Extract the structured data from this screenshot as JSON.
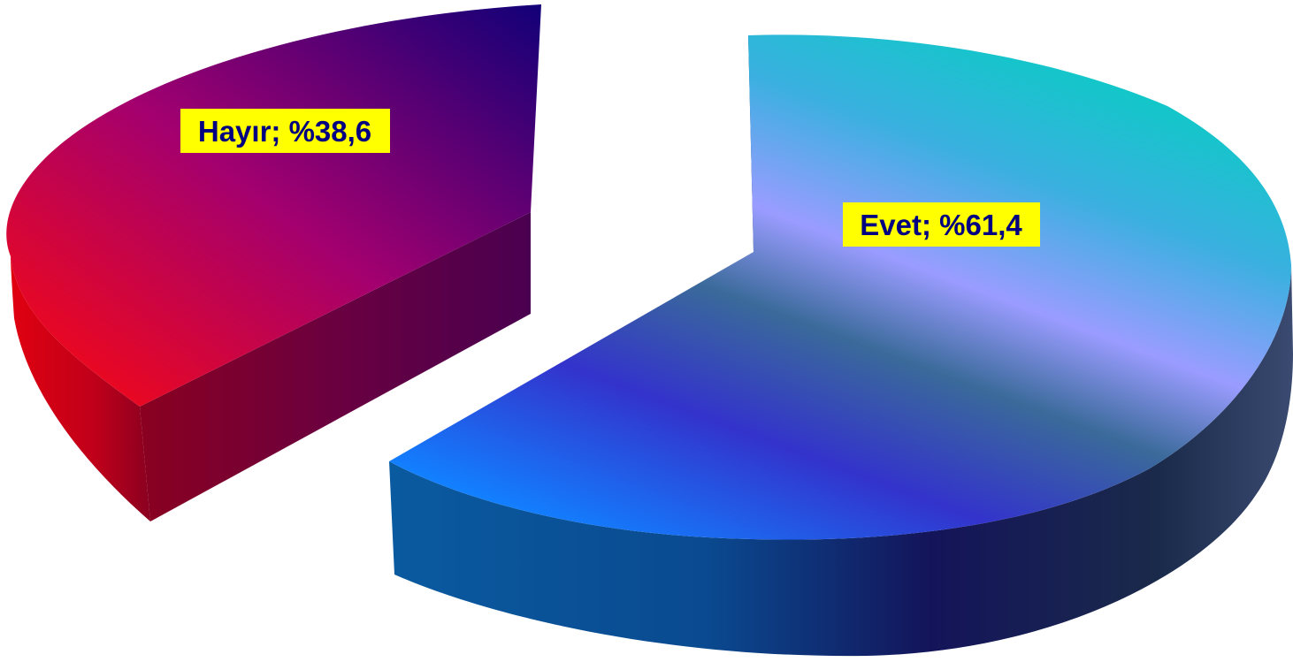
{
  "chart_data": {
    "type": "pie",
    "style": "3d-exploded",
    "slices": [
      {
        "label": "Hayır",
        "value": 38.6,
        "data_label": "Hayır; %38,6",
        "gradient": [
          "#ff0000",
          "#a8006a",
          "#140080"
        ],
        "side_color": "#8a0030"
      },
      {
        "label": "Evet",
        "value": 61.4,
        "data_label": "Evet; %61,4",
        "gradient": [
          "#1a8cff",
          "#3333cc",
          "#99a0ff",
          "#10c8c8"
        ],
        "side_color": "#0c4a8a"
      }
    ],
    "label_background": "#ffff00",
    "label_text_color": "#000080"
  }
}
